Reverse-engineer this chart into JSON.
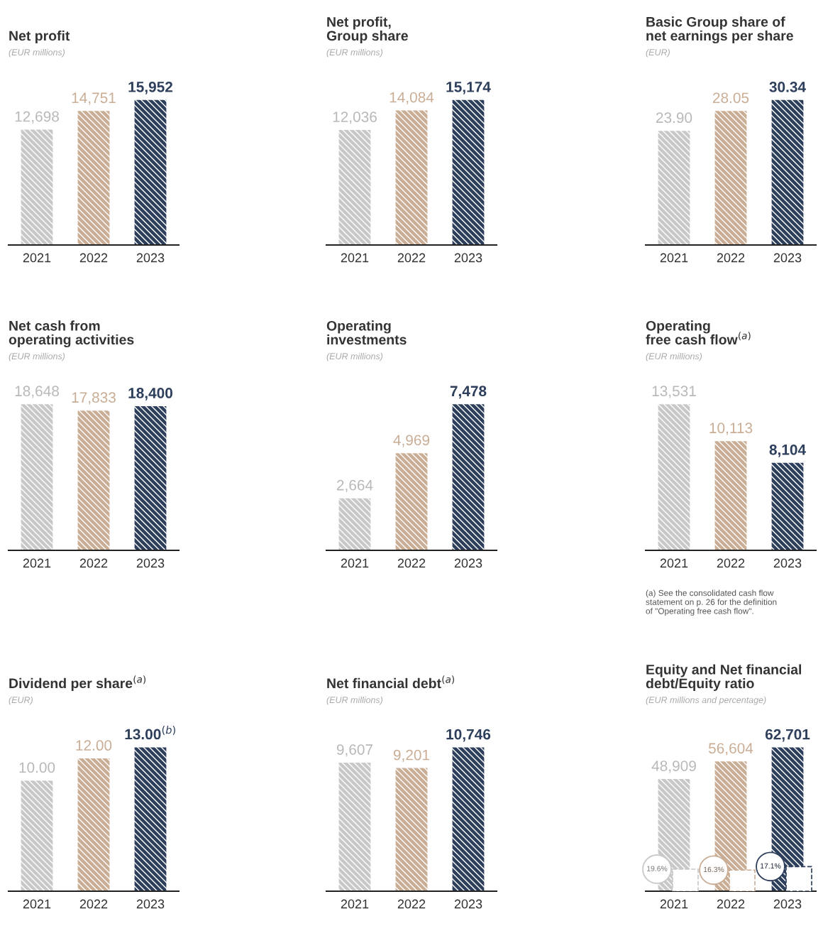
{
  "chart_data": [
    {
      "type": "bar",
      "title": "Net profit",
      "subtitle": "(EUR millions)",
      "categories": [
        "2021",
        "2022",
        "2023"
      ],
      "series": [
        {
          "values": [
            12698,
            14751,
            15952
          ],
          "colors": [
            "#c8c8c8",
            "#c9ad95",
            "#2e3f5c"
          ],
          "value_labels": [
            "12,698",
            "14,751",
            "15,952"
          ]
        }
      ]
    },
    {
      "type": "bar",
      "title": "Net profit,\nGroup share",
      "subtitle": "(EUR millions)",
      "categories": [
        "2021",
        "2022",
        "2023"
      ],
      "series": [
        {
          "values": [
            12036,
            14084,
            15174
          ],
          "colors": [
            "#c8c8c8",
            "#c9ad95",
            "#2e3f5c"
          ],
          "value_labels": [
            "12,036",
            "14,084",
            "15,174"
          ]
        }
      ]
    },
    {
      "type": "bar",
      "title": "Basic Group share of\nnet earnings per share",
      "subtitle": "(EUR)",
      "categories": [
        "2021",
        "2022",
        "2023"
      ],
      "series": [
        {
          "values": [
            23.9,
            28.05,
            30.34
          ],
          "colors": [
            "#c8c8c8",
            "#c9ad95",
            "#2e3f5c"
          ],
          "value_labels": [
            "23.90",
            "28.05",
            "30.34"
          ]
        }
      ]
    },
    {
      "type": "bar",
      "title": "Net cash from\noperating activities",
      "subtitle": "(EUR millions)",
      "categories": [
        "2021",
        "2022",
        "2023"
      ],
      "series": [
        {
          "values": [
            18648,
            17833,
            18400
          ],
          "colors": [
            "#c8c8c8",
            "#c9ad95",
            "#2e3f5c"
          ],
          "value_labels": [
            "18,648",
            "17,833",
            "18,400"
          ]
        }
      ]
    },
    {
      "type": "bar",
      "title": "Operating\ninvestments",
      "subtitle": "(EUR millions)",
      "categories": [
        "2021",
        "2022",
        "2023"
      ],
      "series": [
        {
          "values": [
            2664,
            4969,
            7478
          ],
          "colors": [
            "#c8c8c8",
            "#c9ad95",
            "#2e3f5c"
          ],
          "value_labels": [
            "2,664",
            "4,969",
            "7,478"
          ]
        }
      ]
    },
    {
      "type": "bar",
      "title": "Operating\nfree cash flow$^{(a)}$",
      "subtitle": "(EUR millions)",
      "categories": [
        "2021",
        "2022",
        "2023"
      ],
      "series": [
        {
          "values": [
            13531,
            10113,
            8104
          ],
          "colors": [
            "#c8c8c8",
            "#c9ad95",
            "#2e3f5c"
          ],
          "value_labels": [
            "13,531",
            "10,113",
            "8,104"
          ]
        }
      ],
      "annotations": [
        "(a) See the consolidated cash flow\nstatement on p. 26 for the definition\nof \"Operating free cash flow\"."
      ]
    },
    {
      "type": "bar",
      "title": "Dividend per share$^{(a)}$",
      "subtitle": "(EUR)",
      "categories": [
        "2021",
        "2022",
        "2023"
      ],
      "series": [
        {
          "values": [
            10.0,
            12.0,
            13.0
          ],
          "colors": [
            "#c8c8c8",
            "#c9ad95",
            "#2e3f5c"
          ],
          "value_labels": [
            "10.00",
            "12.00",
            "13.00$^{(b)}$"
          ]
        }
      ]
    },
    {
      "type": "bar",
      "title": "Net financial debt$^{(a)}$",
      "subtitle": "(EUR millions)",
      "categories": [
        "2021",
        "2022",
        "2023"
      ],
      "series": [
        {
          "values": [
            9607,
            9201,
            10746
          ],
          "colors": [
            "#c8c8c8",
            "#c9ad95",
            "#2e3f5c"
          ],
          "value_labels": [
            "9,607",
            "9,201",
            "10,746"
          ]
        }
      ]
    },
    {
      "type": "bar",
      "title": "Equity and Net financial\ndebt/Equity ratio",
      "subtitle": "(EUR millions and percentage)",
      "categories": [
        "2021",
        "2022",
        "2023"
      ],
      "series": [
        {
          "values": [
            48909,
            56604,
            62701
          ],
          "colors": [
            "#c8c8c8",
            "#c9ad95",
            "#2e3f5c"
          ],
          "value_labels": [
            "48,909",
            "56,604",
            "62,701"
          ]
        },
        {
          "values": [
            9607,
            9201,
            10746
          ],
          "color": "#ffffff",
          "line_style": "dashed"
        }
      ],
      "annotations": [
        {
          "text": "19.6%",
          "x": "2021",
          "y": 9607
        },
        {
          "text": "16.3%",
          "x": "2022",
          "y": 9201
        },
        {
          "text": "17.1%",
          "x": "2023",
          "y": 10746
        }
      ]
    }
  ]
}
